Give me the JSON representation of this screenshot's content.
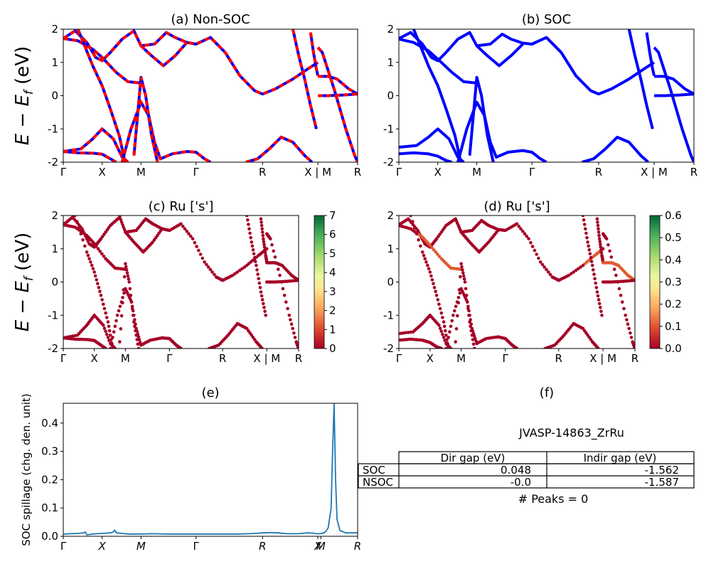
{
  "chart_data": [
    {
      "id": "a",
      "type": "line",
      "title": "(a) Non-SOC",
      "ylabel": "E − E_f (eV)",
      "ylim": [
        -2,
        2
      ],
      "yticks": [
        -2,
        -1,
        0,
        1,
        2
      ],
      "kpath": [
        "Γ",
        "X",
        "M",
        "Γ",
        "R",
        "X | M",
        "R"
      ],
      "kpath_positions": [
        0,
        0.132,
        0.264,
        0.451,
        0.677,
        0.865,
        1.0
      ],
      "band_colors": [
        "#0000ff",
        "#ff0000"
      ],
      "bands": [
        [
          [
            0,
            1.72
          ],
          [
            0.04,
            1.95
          ],
          [
            0.08,
            1.6
          ],
          [
            0.11,
            1.15
          ],
          [
            0.132,
            1.05
          ],
          [
            0.16,
            1.3
          ],
          [
            0.2,
            1.7
          ],
          [
            0.24,
            1.95
          ],
          [
            0.264,
            1.5
          ],
          [
            0.31,
            1.55
          ],
          [
            0.35,
            1.9
          ],
          [
            0.38,
            1.75
          ],
          [
            0.42,
            1.6
          ],
          [
            0.451,
            1.55
          ],
          [
            0.5,
            1.75
          ],
          [
            0.55,
            1.3
          ],
          [
            0.6,
            0.6
          ],
          [
            0.65,
            0.15
          ],
          [
            0.677,
            0.05
          ],
          [
            0.72,
            0.2
          ],
          [
            0.78,
            0.5
          ],
          [
            0.83,
            0.8
          ],
          [
            0.865,
            1.0
          ]
        ],
        [
          [
            0,
            1.72
          ],
          [
            0.05,
            1.65
          ],
          [
            0.1,
            1.4
          ],
          [
            0.132,
            1.15
          ],
          [
            0.18,
            0.7
          ],
          [
            0.22,
            0.42
          ],
          [
            0.264,
            0.38
          ]
        ],
        [
          [
            0,
            -1.68
          ],
          [
            0.06,
            -1.6
          ],
          [
            0.1,
            -1.3
          ],
          [
            0.132,
            -1.0
          ],
          [
            0.17,
            -1.3
          ],
          [
            0.2,
            -1.85
          ],
          [
            0.22,
            -2.0
          ]
        ],
        [
          [
            0,
            -1.68
          ],
          [
            0.05,
            -1.72
          ],
          [
            0.1,
            -1.73
          ],
          [
            0.132,
            -1.76
          ],
          [
            0.16,
            -1.9
          ],
          [
            0.18,
            -2.0
          ]
        ],
        [
          [
            0.05,
            2.0
          ],
          [
            0.1,
            0.9
          ],
          [
            0.132,
            0.3
          ],
          [
            0.16,
            -0.4
          ],
          [
            0.19,
            -1.2
          ],
          [
            0.21,
            -2.0
          ]
        ],
        [
          [
            0.2,
            -2.0
          ],
          [
            0.23,
            -1.0
          ],
          [
            0.264,
            -0.2
          ],
          [
            0.29,
            -0.6
          ],
          [
            0.31,
            -1.4
          ],
          [
            0.33,
            -1.9
          ],
          [
            0.37,
            -1.75
          ],
          [
            0.42,
            -1.68
          ],
          [
            0.451,
            -1.7
          ],
          [
            0.48,
            -1.9
          ],
          [
            0.5,
            -2.0
          ]
        ],
        [
          [
            0.24,
            -1.8
          ],
          [
            0.264,
            0.55
          ],
          [
            0.28,
            0.0
          ],
          [
            0.3,
            -1.2
          ],
          [
            0.32,
            -2.0
          ]
        ],
        [
          [
            0.264,
            1.5
          ],
          [
            0.3,
            1.2
          ],
          [
            0.34,
            0.9
          ],
          [
            0.38,
            1.2
          ],
          [
            0.42,
            1.6
          ]
        ],
        [
          [
            0.62,
            -2.0
          ],
          [
            0.66,
            -1.9
          ],
          [
            0.7,
            -1.6
          ],
          [
            0.74,
            -1.25
          ],
          [
            0.78,
            -1.4
          ],
          [
            0.82,
            -1.8
          ],
          [
            0.845,
            -2.0
          ]
        ],
        [
          [
            0.78,
            2.0
          ],
          [
            0.8,
            1.2
          ],
          [
            0.82,
            0.5
          ],
          [
            0.84,
            -0.3
          ],
          [
            0.86,
            -1.0
          ]
        ],
        [
          [
            0.84,
            1.9
          ],
          [
            0.85,
            1.3
          ],
          [
            0.86,
            0.8
          ],
          [
            0.865,
            0.6
          ]
        ],
        [
          [
            0.865,
            1.45
          ],
          [
            0.88,
            1.3
          ],
          [
            0.92,
            0.2
          ],
          [
            0.96,
            -1.0
          ],
          [
            0.99,
            -1.8
          ],
          [
            1.0,
            -2.0
          ]
        ],
        [
          [
            0.865,
            0.58
          ],
          [
            0.9,
            0.58
          ],
          [
            0.93,
            0.5
          ],
          [
            0.97,
            0.2
          ],
          [
            1.0,
            0.05
          ]
        ],
        [
          [
            0.865,
            0.0
          ],
          [
            0.9,
            0.0
          ],
          [
            0.95,
            0.02
          ],
          [
            1.0,
            0.05
          ]
        ]
      ]
    },
    {
      "id": "b",
      "type": "line",
      "title": "(b) SOC",
      "ylim": [
        -2,
        2
      ],
      "yticks": [
        -2,
        -1,
        0,
        1,
        2
      ],
      "kpath": [
        "Γ",
        "X",
        "M",
        "Γ",
        "R",
        "X | M",
        "R"
      ],
      "kpath_positions": [
        0,
        0.132,
        0.264,
        0.451,
        0.677,
        0.865,
        1.0
      ],
      "band_colors": [
        "#0000ff"
      ],
      "bands": [
        [
          [
            0,
            1.72
          ],
          [
            0.04,
            1.9
          ],
          [
            0.08,
            1.55
          ],
          [
            0.11,
            1.15
          ],
          [
            0.132,
            1.05
          ],
          [
            0.16,
            1.3
          ],
          [
            0.2,
            1.7
          ],
          [
            0.24,
            1.9
          ],
          [
            0.264,
            1.5
          ],
          [
            0.31,
            1.55
          ],
          [
            0.35,
            1.85
          ],
          [
            0.38,
            1.7
          ],
          [
            0.42,
            1.58
          ],
          [
            0.451,
            1.55
          ],
          [
            0.5,
            1.75
          ],
          [
            0.55,
            1.3
          ],
          [
            0.6,
            0.6
          ],
          [
            0.65,
            0.15
          ],
          [
            0.677,
            0.05
          ],
          [
            0.72,
            0.2
          ],
          [
            0.78,
            0.5
          ],
          [
            0.83,
            0.8
          ],
          [
            0.865,
            1.0
          ]
        ],
        [
          [
            0,
            1.7
          ],
          [
            0.05,
            1.6
          ],
          [
            0.1,
            1.35
          ],
          [
            0.132,
            1.1
          ],
          [
            0.18,
            0.7
          ],
          [
            0.22,
            0.42
          ],
          [
            0.264,
            0.38
          ]
        ],
        [
          [
            0,
            -1.55
          ],
          [
            0.06,
            -1.5
          ],
          [
            0.1,
            -1.25
          ],
          [
            0.132,
            -1.0
          ],
          [
            0.17,
            -1.3
          ],
          [
            0.2,
            -1.85
          ],
          [
            0.22,
            -2.0
          ]
        ],
        [
          [
            0,
            -1.75
          ],
          [
            0.05,
            -1.72
          ],
          [
            0.1,
            -1.75
          ],
          [
            0.132,
            -1.82
          ],
          [
            0.16,
            -1.95
          ],
          [
            0.18,
            -2.0
          ]
        ],
        [
          [
            0.05,
            2.0
          ],
          [
            0.1,
            0.9
          ],
          [
            0.132,
            0.3
          ],
          [
            0.16,
            -0.4
          ],
          [
            0.19,
            -1.2
          ],
          [
            0.21,
            -2.0
          ]
        ],
        [
          [
            0.2,
            -2.0
          ],
          [
            0.23,
            -1.0
          ],
          [
            0.264,
            -0.2
          ],
          [
            0.29,
            -0.6
          ],
          [
            0.31,
            -1.4
          ],
          [
            0.33,
            -1.85
          ],
          [
            0.37,
            -1.7
          ],
          [
            0.42,
            -1.65
          ],
          [
            0.451,
            -1.7
          ],
          [
            0.48,
            -1.9
          ],
          [
            0.5,
            -2.0
          ]
        ],
        [
          [
            0.24,
            -1.8
          ],
          [
            0.264,
            0.55
          ],
          [
            0.28,
            0.0
          ],
          [
            0.3,
            -1.2
          ],
          [
            0.32,
            -2.0
          ]
        ],
        [
          [
            0.264,
            1.5
          ],
          [
            0.3,
            1.2
          ],
          [
            0.34,
            0.9
          ],
          [
            0.38,
            1.2
          ],
          [
            0.42,
            1.55
          ]
        ],
        [
          [
            0.62,
            -2.0
          ],
          [
            0.66,
            -1.9
          ],
          [
            0.7,
            -1.6
          ],
          [
            0.74,
            -1.25
          ],
          [
            0.78,
            -1.4
          ],
          [
            0.82,
            -1.8
          ],
          [
            0.845,
            -2.0
          ]
        ],
        [
          [
            0.78,
            2.0
          ],
          [
            0.8,
            1.2
          ],
          [
            0.82,
            0.5
          ],
          [
            0.84,
            -0.3
          ],
          [
            0.86,
            -1.0
          ]
        ],
        [
          [
            0.84,
            1.9
          ],
          [
            0.85,
            1.3
          ],
          [
            0.86,
            0.8
          ],
          [
            0.865,
            0.6
          ]
        ],
        [
          [
            0.865,
            1.45
          ],
          [
            0.88,
            1.3
          ],
          [
            0.92,
            0.2
          ],
          [
            0.96,
            -1.0
          ],
          [
            0.99,
            -1.8
          ],
          [
            1.0,
            -2.0
          ]
        ],
        [
          [
            0.865,
            0.58
          ],
          [
            0.9,
            0.58
          ],
          [
            0.93,
            0.5
          ],
          [
            0.97,
            0.2
          ],
          [
            1.0,
            0.05
          ]
        ],
        [
          [
            0.865,
            0.0
          ],
          [
            0.9,
            0.0
          ],
          [
            0.95,
            0.02
          ],
          [
            1.0,
            0.05
          ]
        ]
      ]
    },
    {
      "id": "c",
      "type": "scatter",
      "title": "(c)  Ru ['s']",
      "ylabel": "E − E_f (eV)",
      "ylim": [
        -2,
        2
      ],
      "yticks": [
        -2,
        -1,
        0,
        1,
        2
      ],
      "kpath": [
        "Γ",
        "X",
        "M",
        "Γ",
        "R",
        "X | M",
        "R"
      ],
      "kpath_positions": [
        0,
        0.132,
        0.264,
        0.451,
        0.677,
        0.865,
        1.0
      ],
      "colorbar": {
        "min": 0,
        "max": 7,
        "ticks": [
          0,
          1,
          2,
          3,
          4,
          5,
          6,
          7
        ],
        "colormap": "RdYlGn"
      },
      "point_color": "#a50026"
    },
    {
      "id": "d",
      "type": "scatter",
      "title": "(d) Ru ['s']",
      "ylim": [
        -2,
        2
      ],
      "yticks": [
        -2,
        -1,
        0,
        1,
        2
      ],
      "kpath": [
        "Γ",
        "X",
        "M",
        "Γ",
        "R",
        "X | M",
        "R"
      ],
      "kpath_positions": [
        0,
        0.132,
        0.264,
        0.451,
        0.677,
        0.865,
        1.0
      ],
      "colorbar": {
        "min": 0.0,
        "max": 0.6,
        "ticks": [
          "0.0",
          "0.1",
          "0.2",
          "0.3",
          "0.4",
          "0.5",
          "0.6"
        ],
        "colormap": "RdYlGn"
      },
      "point_color": "#a50026",
      "highlight_color": "#e05a30"
    },
    {
      "id": "e",
      "type": "line",
      "title": "(e)",
      "ylabel": "SOC spillage (chg. den. unit)",
      "ylim": [
        0,
        0.47
      ],
      "yticks": [
        "0.0",
        "0.1",
        "0.2",
        "0.3",
        "0.4"
      ],
      "kpath": [
        "Γ",
        "X",
        "M",
        "Γ",
        "R",
        "X",
        "M",
        "R"
      ],
      "kpath_positions": [
        0,
        0.132,
        0.264,
        0.451,
        0.677,
        0.865,
        0.875,
        1.0
      ],
      "color": "#1f77b4",
      "x": [
        0,
        0.05,
        0.07,
        0.075,
        0.08,
        0.1,
        0.13,
        0.16,
        0.17,
        0.175,
        0.18,
        0.2,
        0.22,
        0.26,
        0.3,
        0.35,
        0.4,
        0.45,
        0.5,
        0.55,
        0.6,
        0.63,
        0.65,
        0.68,
        0.7,
        0.73,
        0.76,
        0.8,
        0.83,
        0.85,
        0.86,
        0.87,
        0.88,
        0.89,
        0.9,
        0.91,
        0.915,
        0.92,
        0.925,
        0.93,
        0.94,
        0.96,
        1.0
      ],
      "values": [
        0.008,
        0.01,
        0.012,
        0.015,
        0.005,
        0.008,
        0.01,
        0.012,
        0.015,
        0.022,
        0.012,
        0.01,
        0.008,
        0.008,
        0.009,
        0.008,
        0.008,
        0.008,
        0.008,
        0.008,
        0.008,
        0.009,
        0.01,
        0.012,
        0.013,
        0.012,
        0.009,
        0.009,
        0.012,
        0.011,
        0.009,
        0.009,
        0.01,
        0.015,
        0.03,
        0.1,
        0.3,
        0.47,
        0.2,
        0.06,
        0.02,
        0.012,
        0.012
      ]
    }
  ],
  "panel_f": {
    "title": "(f)",
    "material": "JVASP-14863_ZrRu",
    "table": {
      "headers": [
        "",
        "Dir gap (eV)",
        "Indir gap (eV)"
      ],
      "rows": [
        [
          "SOC",
          "0.048",
          "-1.562"
        ],
        [
          "NSOC",
          "-0.0",
          "-1.587"
        ]
      ]
    },
    "peaks": "# Peaks = 0"
  }
}
